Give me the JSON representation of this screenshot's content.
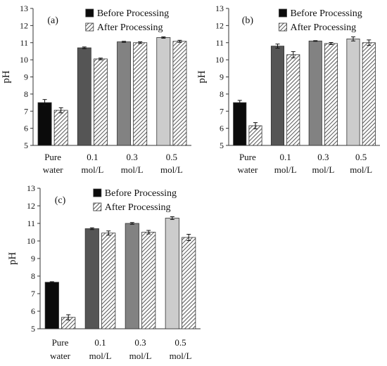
{
  "legend_labels": {
    "before": "Before Processing",
    "after": "After Processing"
  },
  "colors": {
    "pure_water": "#0b0b0b",
    "c01": "#555555",
    "c03": "#828282",
    "c05": "#cccccc",
    "after_hatch": "#555555"
  },
  "chart_data": [
    {
      "type": "bar",
      "panel": "(a)",
      "ylabel": "pH",
      "ylim": [
        5,
        13
      ],
      "yticks": [
        5,
        6,
        7,
        8,
        9,
        10,
        11,
        12,
        13
      ],
      "categories": [
        [
          "Pure",
          "water"
        ],
        [
          "0.1",
          "mol/L"
        ],
        [
          "0.3",
          "mol/L"
        ],
        [
          "0.5",
          "mol/L"
        ]
      ],
      "series": [
        {
          "name": "Before Processing",
          "values": [
            7.5,
            10.7,
            11.05,
            11.3
          ],
          "errors": [
            0.18,
            0.05,
            0.03,
            0.04
          ]
        },
        {
          "name": "After Processing",
          "values": [
            7.05,
            10.05,
            11.0,
            11.08
          ],
          "errors": [
            0.15,
            0.05,
            0.05,
            0.06
          ]
        }
      ]
    },
    {
      "type": "bar",
      "panel": "(b)",
      "ylabel": "pH",
      "ylim": [
        5,
        13
      ],
      "yticks": [
        5,
        6,
        7,
        8,
        9,
        10,
        11,
        12,
        13
      ],
      "categories": [
        [
          "Pure",
          "water"
        ],
        [
          "0.1",
          "mol/L"
        ],
        [
          "0.3",
          "mol/L"
        ],
        [
          "0.5",
          "mol/L"
        ]
      ],
      "series": [
        {
          "name": "Before Processing",
          "values": [
            7.5,
            10.8,
            11.1,
            11.22
          ],
          "errors": [
            0.13,
            0.12,
            0.02,
            0.12
          ]
        },
        {
          "name": "After Processing",
          "values": [
            6.15,
            10.3,
            10.95,
            11.0
          ],
          "errors": [
            0.18,
            0.18,
            0.06,
            0.16
          ]
        }
      ]
    },
    {
      "type": "bar",
      "panel": "(c)",
      "ylabel": "pH",
      "ylim": [
        5,
        13
      ],
      "yticks": [
        5,
        6,
        7,
        8,
        9,
        10,
        11,
        12,
        13
      ],
      "categories": [
        [
          "Pure",
          "water"
        ],
        [
          "0.1",
          "mol/L"
        ],
        [
          "0.3",
          "mol/L"
        ],
        [
          "0.5",
          "mol/L"
        ]
      ],
      "series": [
        {
          "name": "Before Processing",
          "values": [
            7.65,
            10.7,
            11.0,
            11.3
          ],
          "errors": [
            0.03,
            0.05,
            0.05,
            0.08
          ]
        },
        {
          "name": "After Processing",
          "values": [
            5.65,
            10.45,
            10.5,
            10.2
          ],
          "errors": [
            0.15,
            0.12,
            0.1,
            0.18
          ]
        }
      ]
    }
  ]
}
